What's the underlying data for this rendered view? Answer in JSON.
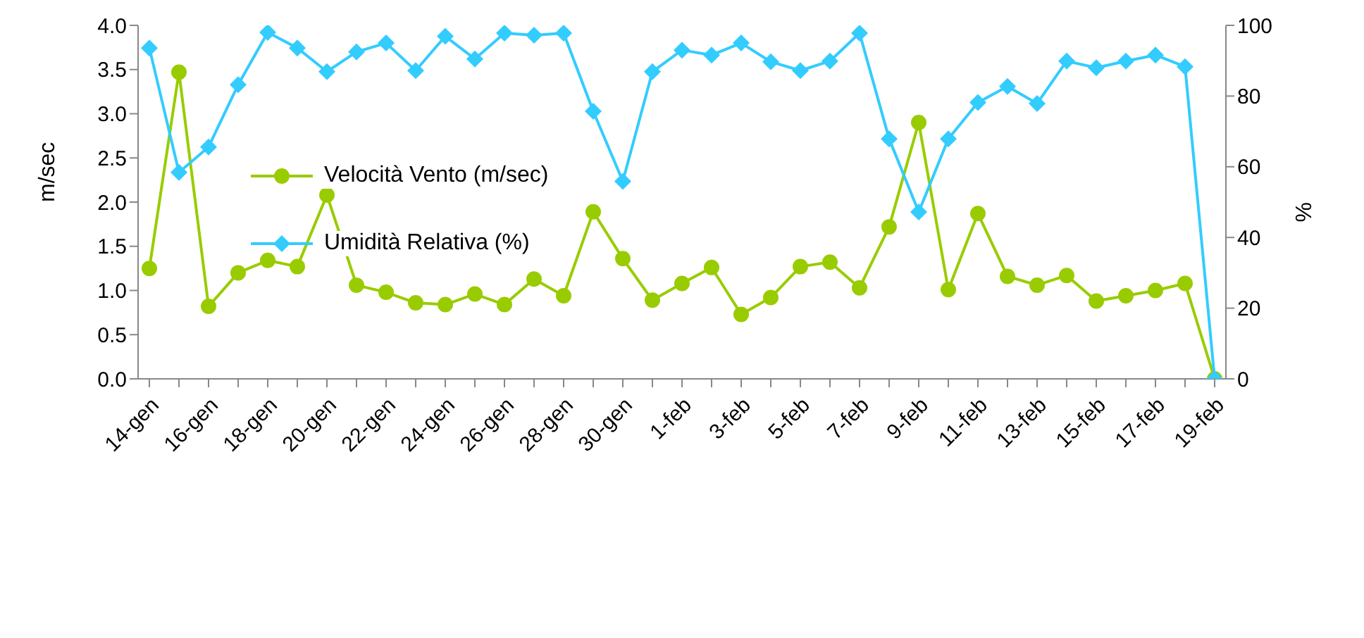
{
  "chart_data": {
    "type": "line",
    "categories": [
      "14-gen",
      null,
      "16-gen",
      null,
      "18-gen",
      null,
      "20-gen",
      null,
      "22-gen",
      null,
      "24-gen",
      null,
      "26-gen",
      null,
      "28-gen",
      null,
      "30-gen",
      null,
      "1-feb",
      null,
      "3-feb",
      null,
      "5-feb",
      null,
      "7-feb",
      null,
      "9-feb",
      null,
      "11-feb",
      null,
      "13-feb",
      null,
      "15-feb",
      null,
      "17-feb",
      null,
      "19-feb"
    ],
    "series": [
      {
        "name": "Velocità Vento (m/sec)",
        "color": "#99cc00",
        "marker": "circle",
        "values": [
          1.25,
          3.47,
          0.82,
          1.2,
          1.34,
          1.27,
          2.08,
          1.06,
          0.98,
          0.86,
          0.84,
          0.96,
          0.84,
          1.13,
          0.94,
          1.89,
          1.36,
          0.89,
          1.08,
          1.26,
          0.73,
          0.92,
          1.27,
          1.32,
          1.03,
          1.72,
          2.9,
          1.01,
          1.87,
          1.16,
          1.06,
          1.17,
          0.88,
          0.94,
          1.0,
          1.08,
          0
        ]
      },
      {
        "name": "Umidità Relativa (%)",
        "color": "#33ccff",
        "marker": "diamond",
        "axis": "y2",
        "values": [
          93.6,
          58.4,
          65.6,
          83.2,
          98,
          93.6,
          86.9,
          92.5,
          95,
          87.2,
          96.9,
          90.5,
          97.8,
          97.2,
          97.8,
          75.7,
          55.9,
          86.9,
          93,
          91.6,
          95,
          89.7,
          87.2,
          89.9,
          97.8,
          67.9,
          47.2,
          67.9,
          78.2,
          82.7,
          77.9,
          89.9,
          88,
          89.9,
          91.6,
          88.3,
          0
        ]
      }
    ],
    "ylabel": "m/sec",
    "y2label": "%",
    "ylim": [
      0,
      4
    ],
    "yticks": [
      {
        "value": 0,
        "label": "0.0"
      },
      {
        "value": 0.5,
        "label": "0.5"
      },
      {
        "value": 1,
        "label": "1.0"
      },
      {
        "value": 1.5,
        "label": "1.5"
      },
      {
        "value": 2,
        "label": "2.0"
      },
      {
        "value": 2.5,
        "label": "2.5"
      },
      {
        "value": 3,
        "label": "3.0"
      },
      {
        "value": 3.5,
        "label": "3.5"
      },
      {
        "value": 4,
        "label": "4.0"
      }
    ],
    "y2lim": [
      0,
      100
    ],
    "y2ticks": [
      0,
      20,
      40,
      60,
      80,
      100
    ],
    "legend": "left",
    "grid": false
  }
}
